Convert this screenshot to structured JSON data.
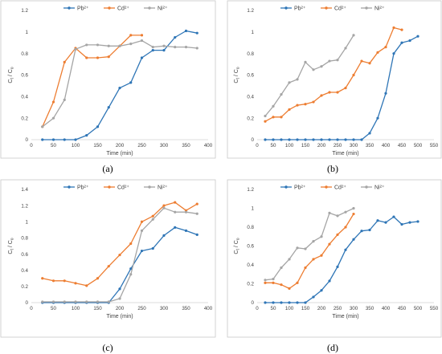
{
  "colors": {
    "Pb": "#2E75B6",
    "Cd": "#ED7D31",
    "Ni": "#A5A5A5"
  },
  "chart_data": [
    {
      "type": "line",
      "caption": "(a)",
      "xlabel": "Time (min)",
      "ylabel_main": "C",
      "ylabel_sub1": "t",
      "ylabel_mid": " / C",
      "ylabel_sub2": "o",
      "xlim": [
        0,
        400
      ],
      "xticks": [
        0,
        50,
        100,
        150,
        200,
        250,
        300,
        350,
        400
      ],
      "xtick_labels": [
        "0",
        "50",
        "100",
        "150",
        "200",
        "250",
        "300",
        "350",
        "400"
      ],
      "ylim": [
        0,
        1.2
      ],
      "yticks": [
        0,
        0.2,
        0.4,
        0.6,
        0.8,
        1,
        1.2
      ],
      "ytick_labels": [
        "0",
        "0.2",
        "0.4",
        "0.6",
        "0.8",
        "1",
        "1.2"
      ],
      "legend_position": "top",
      "series": [
        {
          "name": "Pb²⁺",
          "key": "Pb",
          "x": [
            25,
            50,
            75,
            100,
            125,
            150,
            175,
            200,
            225,
            250,
            275,
            300,
            325,
            350,
            375
          ],
          "y": [
            0.0,
            0.0,
            0.0,
            0.0,
            0.04,
            0.12,
            0.3,
            0.48,
            0.53,
            0.76,
            0.83,
            0.83,
            0.95,
            1.01,
            0.99
          ]
        },
        {
          "name": "Cd²⁺",
          "key": "Cd",
          "x": [
            25,
            50,
            75,
            100,
            125,
            150,
            175,
            200,
            225,
            250
          ],
          "y": [
            0.12,
            0.35,
            0.72,
            0.85,
            0.76,
            0.76,
            0.77,
            0.87,
            0.97,
            0.97
          ]
        },
        {
          "name": "Ni²⁺",
          "key": "Ni",
          "x": [
            25,
            50,
            75,
            100,
            125,
            150,
            175,
            200,
            225,
            250,
            275,
            300,
            325,
            350,
            375
          ],
          "y": [
            0.12,
            0.2,
            0.37,
            0.84,
            0.88,
            0.88,
            0.87,
            0.87,
            0.89,
            0.92,
            0.86,
            0.87,
            0.86,
            0.86,
            0.85
          ]
        }
      ]
    },
    {
      "type": "line",
      "caption": "(b)",
      "xlabel": "Time (min)",
      "ylabel_main": "C",
      "ylabel_sub1": "t",
      "ylabel_mid": " / C",
      "ylabel_sub2": "o",
      "xlim": [
        0,
        550
      ],
      "xticks": [
        0,
        50,
        100,
        150,
        200,
        250,
        300,
        350,
        400,
        450,
        500,
        550
      ],
      "xtick_labels": [
        "0",
        "50",
        "100",
        "150",
        "200",
        "250",
        "300",
        "350",
        "400",
        "450",
        "500",
        "550"
      ],
      "ylim": [
        0,
        1.2
      ],
      "yticks": [
        0,
        0.2,
        0.4,
        0.6,
        0.8,
        1,
        1.2
      ],
      "ytick_labels": [
        "0",
        "0.2",
        "0.4",
        "0.6",
        "0.8",
        "1",
        "1.2"
      ],
      "legend_position": "top-left",
      "series": [
        {
          "name": "Pb²⁺",
          "key": "Pb",
          "x": [
            25,
            50,
            75,
            100,
            125,
            150,
            175,
            200,
            225,
            250,
            275,
            300,
            325,
            350,
            375,
            400,
            425,
            450,
            475,
            500
          ],
          "y": [
            0.0,
            0.0,
            0.0,
            0.0,
            0.0,
            0.0,
            0.0,
            0.0,
            0.0,
            0.0,
            0.0,
            0.0,
            0.0,
            0.06,
            0.2,
            0.43,
            0.8,
            0.9,
            0.92,
            0.96
          ]
        },
        {
          "name": "Cd²⁺",
          "key": "Cd",
          "x": [
            25,
            50,
            75,
            100,
            125,
            150,
            175,
            200,
            225,
            250,
            275,
            300,
            325,
            350,
            375,
            400,
            425,
            450
          ],
          "y": [
            0.17,
            0.21,
            0.21,
            0.28,
            0.32,
            0.33,
            0.35,
            0.41,
            0.44,
            0.44,
            0.48,
            0.6,
            0.73,
            0.71,
            0.81,
            0.86,
            1.04,
            1.02
          ]
        },
        {
          "name": "Ni²⁺",
          "key": "Ni",
          "x": [
            25,
            50,
            75,
            100,
            125,
            150,
            175,
            200,
            225,
            250,
            275,
            300
          ],
          "y": [
            0.22,
            0.31,
            0.42,
            0.53,
            0.56,
            0.72,
            0.65,
            0.68,
            0.73,
            0.74,
            0.85,
            0.97
          ]
        }
      ]
    },
    {
      "type": "line",
      "caption": "(c)",
      "xlabel": "Time (min)",
      "ylabel_main": "C",
      "ylabel_sub1": "t",
      "ylabel_mid": " / C",
      "ylabel_sub2": "o",
      "xlim": [
        0,
        400
      ],
      "xticks": [
        0,
        50,
        100,
        150,
        200,
        250,
        300,
        350,
        400
      ],
      "xtick_labels": [
        "0",
        "50",
        "100",
        "150",
        "200",
        "250",
        "300",
        "350",
        "400"
      ],
      "ylim": [
        0,
        1.4
      ],
      "yticks": [
        0,
        0.2,
        0.4,
        0.6,
        0.8,
        1,
        1.2,
        1.4
      ],
      "ytick_labels": [
        "0",
        "0.2",
        "0.4",
        "0.6",
        "0.8",
        "1",
        "1.2",
        "1.4"
      ],
      "legend_position": "top",
      "series": [
        {
          "name": "Pb²⁺",
          "key": "Pb",
          "x": [
            25,
            50,
            75,
            100,
            125,
            150,
            175,
            200,
            225,
            250,
            275,
            300,
            325,
            350,
            375
          ],
          "y": [
            0.0,
            0.0,
            0.0,
            0.0,
            0.0,
            0.0,
            0.0,
            0.17,
            0.42,
            0.64,
            0.67,
            0.83,
            0.93,
            0.89,
            0.84
          ]
        },
        {
          "name": "Cd²⁺",
          "key": "Cd",
          "x": [
            25,
            50,
            75,
            100,
            125,
            150,
            175,
            200,
            225,
            250,
            275,
            300,
            325,
            350,
            375
          ],
          "y": [
            0.3,
            0.27,
            0.27,
            0.24,
            0.21,
            0.3,
            0.45,
            0.59,
            0.73,
            1.0,
            1.07,
            1.2,
            1.24,
            1.14,
            1.22
          ]
        },
        {
          "name": "Ni²⁺",
          "key": "Ni",
          "x": [
            25,
            50,
            75,
            100,
            125,
            150,
            175,
            200,
            225,
            250,
            275,
            300,
            325,
            350,
            375
          ],
          "y": [
            0.01,
            0.01,
            0.01,
            0.01,
            0.01,
            0.01,
            0.01,
            0.05,
            0.35,
            0.89,
            1.03,
            1.17,
            1.12,
            1.12,
            1.1
          ]
        }
      ]
    },
    {
      "type": "line",
      "caption": "(d)",
      "xlabel": "Time (min)",
      "ylabel_main": "C",
      "ylabel_sub1": "t",
      "ylabel_mid": " / C",
      "ylabel_sub2": "o",
      "xlim": [
        0,
        550
      ],
      "xticks": [
        0,
        50,
        100,
        150,
        200,
        250,
        300,
        350,
        400,
        450,
        500,
        550
      ],
      "xtick_labels": [
        "0",
        "50",
        "100",
        "150",
        "200",
        "250",
        "300",
        "350",
        "400",
        "450",
        "500",
        "550"
      ],
      "ylim": [
        0,
        1.2
      ],
      "yticks": [
        0,
        0.2,
        0.4,
        0.6,
        0.8,
        1,
        1.2
      ],
      "ytick_labels": [
        "0",
        "0.2",
        "0.4",
        "0.6",
        "0.8",
        "1",
        "1.2"
      ],
      "legend_position": "top",
      "series": [
        {
          "name": "Pb²⁺",
          "key": "Pb",
          "x": [
            25,
            50,
            75,
            100,
            125,
            150,
            175,
            200,
            225,
            250,
            275,
            300,
            325,
            350,
            375,
            400,
            425,
            450,
            475,
            500
          ],
          "y": [
            0.0,
            0.0,
            0.0,
            0.0,
            0.0,
            0.0,
            0.06,
            0.13,
            0.23,
            0.38,
            0.56,
            0.67,
            0.76,
            0.77,
            0.87,
            0.85,
            0.91,
            0.83,
            0.85,
            0.86
          ]
        },
        {
          "name": "Cd²⁺",
          "key": "Cd",
          "x": [
            25,
            50,
            75,
            100,
            125,
            150,
            175,
            200,
            225,
            250,
            275,
            300
          ],
          "y": [
            0.21,
            0.21,
            0.19,
            0.15,
            0.21,
            0.37,
            0.46,
            0.5,
            0.62,
            0.72,
            0.8,
            0.94
          ]
        },
        {
          "name": "Ni²⁺",
          "key": "Ni",
          "x": [
            25,
            50,
            75,
            100,
            125,
            150,
            175,
            200,
            225,
            250,
            275,
            300
          ],
          "y": [
            0.24,
            0.25,
            0.37,
            0.46,
            0.58,
            0.57,
            0.65,
            0.7,
            0.95,
            0.92,
            0.96,
            1.0
          ]
        }
      ]
    }
  ]
}
